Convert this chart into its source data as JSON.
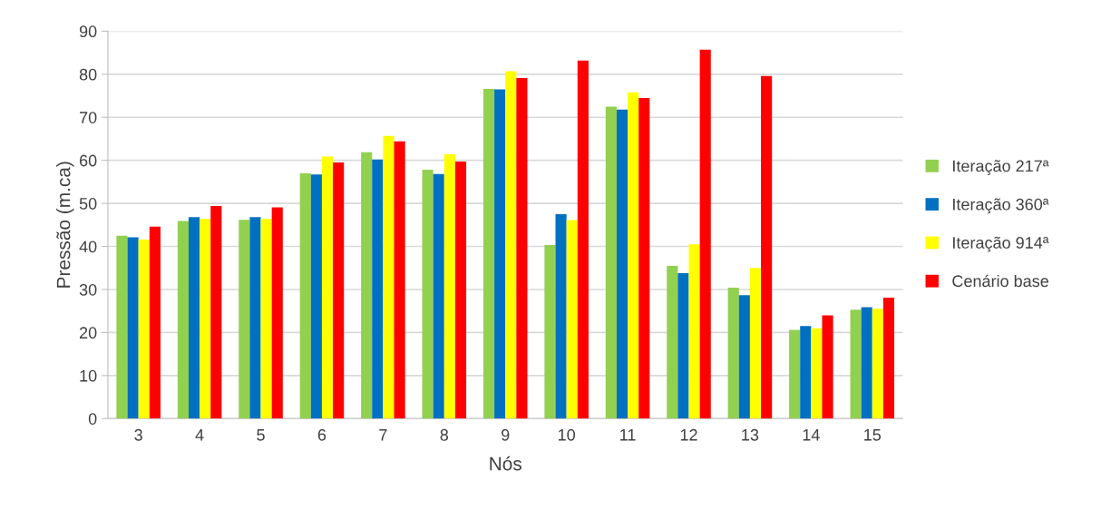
{
  "chart_data": {
    "type": "bar",
    "xlabel": "Nós",
    "ylabel": "Pressão (m.ca)",
    "categories": [
      "3",
      "4",
      "5",
      "6",
      "7",
      "8",
      "9",
      "10",
      "11",
      "12",
      "13",
      "14",
      "15"
    ],
    "series": [
      {
        "name": "Iteração 217ª",
        "color": "#92d050",
        "values": [
          42.5,
          45.9,
          46.2,
          57.0,
          61.9,
          57.8,
          76.6,
          40.3,
          72.5,
          35.5,
          30.4,
          20.6,
          25.3
        ]
      },
      {
        "name": "Iteração 360ª",
        "color": "#0070c0",
        "values": [
          42.1,
          46.8,
          46.8,
          56.7,
          60.2,
          56.8,
          76.5,
          47.5,
          71.8,
          33.8,
          28.7,
          21.5,
          25.9
        ]
      },
      {
        "name": "Iteração 914ª",
        "color": "#ffff00",
        "values": [
          41.6,
          46.4,
          46.4,
          60.9,
          65.7,
          61.4,
          80.7,
          46.1,
          75.8,
          40.5,
          35.0,
          21.0,
          25.5
        ]
      },
      {
        "name": "Cenário base",
        "color": "#ff0000",
        "values": [
          44.6,
          49.4,
          49.1,
          59.5,
          64.4,
          59.7,
          79.1,
          83.2,
          74.5,
          85.7,
          79.6,
          24.0,
          28.1
        ]
      }
    ],
    "ylim": [
      0,
      90
    ],
    "yticks": [
      0,
      10,
      20,
      30,
      40,
      50,
      60,
      70,
      80,
      90
    ],
    "grid": "y",
    "legend": "right"
  }
}
